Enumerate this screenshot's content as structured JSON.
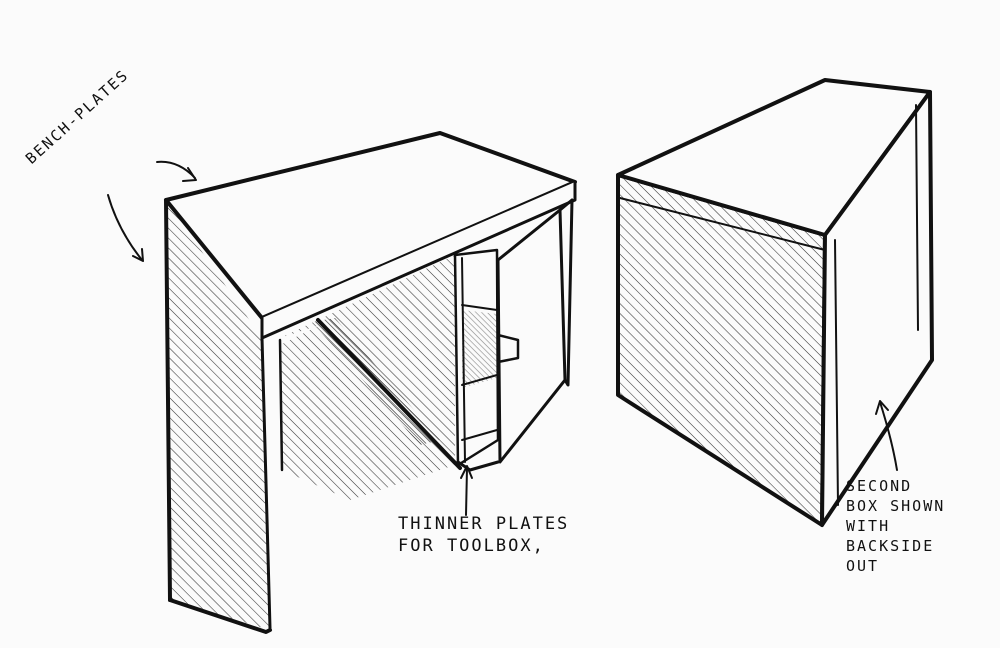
{
  "labels": {
    "bench_plates": "BENCH-PLATES",
    "thinner_plates": [
      "THINNER PLATES",
      "FOR TOOLBOX,"
    ],
    "second_box": [
      "SECOND",
      "BOX SHOWN",
      "WITH",
      "BACKSIDE",
      "OUT"
    ]
  },
  "colors": {
    "ink": "#111111",
    "paper": "#fbfbfb"
  }
}
